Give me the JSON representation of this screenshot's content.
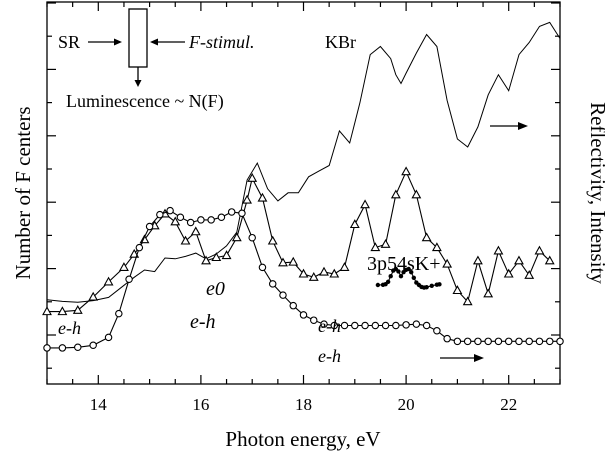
{
  "chart_data": {
    "type": "line",
    "xlabel": "Photon  energy, eV",
    "ylabel": "Number of F centers",
    "ylabel_right": "Reflectivity, Intensity",
    "xlim": [
      13,
      23
    ],
    "x_ticks": [
      14,
      16,
      18,
      20,
      22
    ],
    "grid": false,
    "annotations": {
      "sr": "SR",
      "f_stimul": "F-stimul.",
      "luminescence": "Luminescence ~ N(F)",
      "kbr": "KBr",
      "e_h_1": "e-h",
      "e0": "e0",
      "e_h_2": "e-h",
      "e_h_3": "e-h",
      "e_h_4": "e-h",
      "exciton_label": "3p54sK+"
    },
    "series": [
      {
        "style": "line",
        "axis": "right",
        "x": [
          13.0,
          13.3,
          13.6,
          13.9,
          14.2,
          14.5,
          14.7,
          14.9,
          15.1,
          15.3,
          15.5,
          15.7,
          15.9,
          16.1,
          16.3,
          16.5,
          16.7,
          16.9,
          17.1,
          17.3,
          17.5,
          17.7,
          17.9,
          18.1,
          18.3,
          18.5,
          18.7,
          18.9,
          19.1,
          19.3,
          19.5,
          19.7,
          19.8,
          19.9,
          20.0,
          20.2,
          20.4,
          20.6,
          20.8,
          21.0,
          21.2,
          21.4,
          21.6,
          21.8,
          22.0,
          22.2,
          22.4,
          22.6,
          22.8,
          23.0
        ],
        "values": [
          30.5,
          30.3,
          30.2,
          30.4,
          30.8,
          32.3,
          33.3,
          34.2,
          34.0,
          35.7,
          35.6,
          35.9,
          36.3,
          35.6,
          36.2,
          37.2,
          38.9,
          45.4,
          47.5,
          44.3,
          42.8,
          43.8,
          43.8,
          45.8,
          46.5,
          47.2,
          51.5,
          50.0,
          55.0,
          61.0,
          62.0,
          60.5,
          58.5,
          57.4,
          58.7,
          61.2,
          63.5,
          62.0,
          55.3,
          50.5,
          49.5,
          52.0,
          56.0,
          58.5,
          56.5,
          61.0,
          62.5,
          64.5,
          65.0,
          63.0
        ]
      },
      {
        "style": "line-triangle",
        "axis": "left",
        "x": [
          13.0,
          13.3,
          13.6,
          13.9,
          14.2,
          14.5,
          14.7,
          14.9,
          15.1,
          15.3,
          15.5,
          15.7,
          15.9,
          16.1,
          16.3,
          16.5,
          16.7,
          16.9,
          17.0,
          17.2,
          17.4,
          17.6,
          17.8,
          18.0,
          18.2,
          18.4,
          18.6,
          18.8,
          19.0,
          19.2,
          19.4,
          19.6,
          19.8,
          20.0,
          20.2,
          20.4,
          20.6,
          20.8,
          21.0,
          21.2,
          21.4,
          21.6,
          21.8,
          22.0,
          22.2,
          22.4,
          22.6,
          22.8
        ],
        "values": [
          1.43,
          1.43,
          1.45,
          1.65,
          1.88,
          2.1,
          2.3,
          2.52,
          2.73,
          2.91,
          2.79,
          2.5,
          2.64,
          2.2,
          2.25,
          2.28,
          2.55,
          3.12,
          3.45,
          3.15,
          2.5,
          2.17,
          2.18,
          2.0,
          1.95,
          2.03,
          2.0,
          2.1,
          2.75,
          3.05,
          2.4,
          2.45,
          3.2,
          3.55,
          3.2,
          2.55,
          2.4,
          2.15,
          1.75,
          1.58,
          2.2,
          1.7,
          2.35,
          2.0,
          2.2,
          1.98,
          2.35,
          2.2
        ]
      },
      {
        "style": "line-circle",
        "axis": "left",
        "x": [
          13.0,
          13.3,
          13.6,
          13.9,
          14.2,
          14.4,
          14.6,
          14.8,
          15.0,
          15.2,
          15.4,
          15.6,
          15.8,
          16.0,
          16.2,
          16.4,
          16.6,
          16.8,
          17.0,
          17.2,
          17.4,
          17.6,
          17.8,
          18.0,
          18.2,
          18.4,
          18.6,
          18.8,
          19.0,
          19.2,
          19.4,
          19.6,
          19.8,
          20.0,
          20.2,
          20.4,
          20.6,
          20.8,
          21.0,
          21.2,
          21.4,
          21.6,
          21.8,
          22.0,
          22.2,
          22.4,
          22.6,
          22.8,
          23.0
        ],
        "values": [
          0.88,
          0.88,
          0.89,
          0.92,
          1.04,
          1.4,
          1.92,
          2.4,
          2.72,
          2.9,
          2.96,
          2.86,
          2.78,
          2.82,
          2.82,
          2.86,
          2.94,
          2.92,
          2.55,
          2.1,
          1.85,
          1.68,
          1.52,
          1.38,
          1.3,
          1.24,
          1.22,
          1.22,
          1.22,
          1.22,
          1.22,
          1.22,
          1.22,
          1.23,
          1.24,
          1.22,
          1.14,
          1.02,
          0.98,
          0.98,
          0.98,
          0.98,
          0.98,
          0.98,
          0.98,
          0.98,
          0.98,
          0.98,
          0.98
        ]
      },
      {
        "style": "line-dot",
        "axis": "inset",
        "x": [
          19.45,
          19.55,
          19.6,
          19.65,
          19.7,
          19.75,
          19.8,
          19.85,
          19.9,
          19.95,
          20.0,
          20.05,
          20.1,
          20.15,
          20.2,
          20.25,
          20.3,
          20.35,
          20.4,
          20.5,
          20.6,
          20.65
        ],
        "values": [
          0.0,
          0.01,
          0.05,
          0.2,
          0.55,
          0.9,
          1.0,
          0.85,
          0.55,
          0.8,
          0.95,
          1.0,
          0.8,
          0.45,
          0.15,
          0.0,
          -0.12,
          -0.16,
          -0.14,
          -0.05,
          0.02,
          0.04
        ]
      }
    ]
  }
}
